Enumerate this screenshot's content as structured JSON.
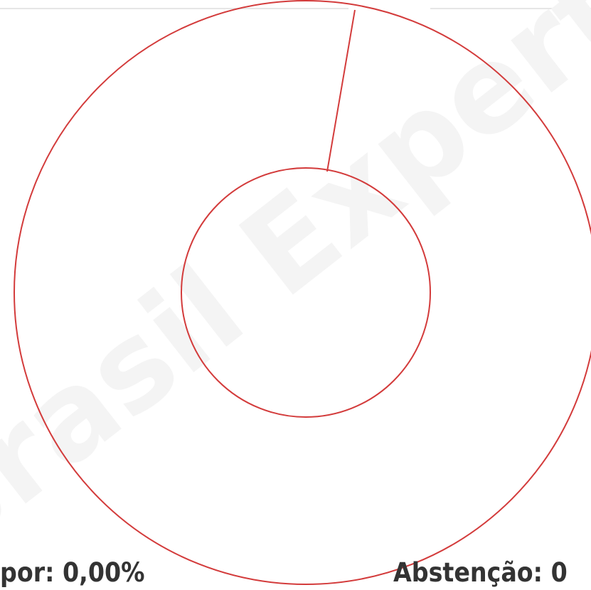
{
  "watermark": "Brasil Expert",
  "labels": {
    "left": "por: 0,00%",
    "right": "Abstenção: 0"
  }
}
